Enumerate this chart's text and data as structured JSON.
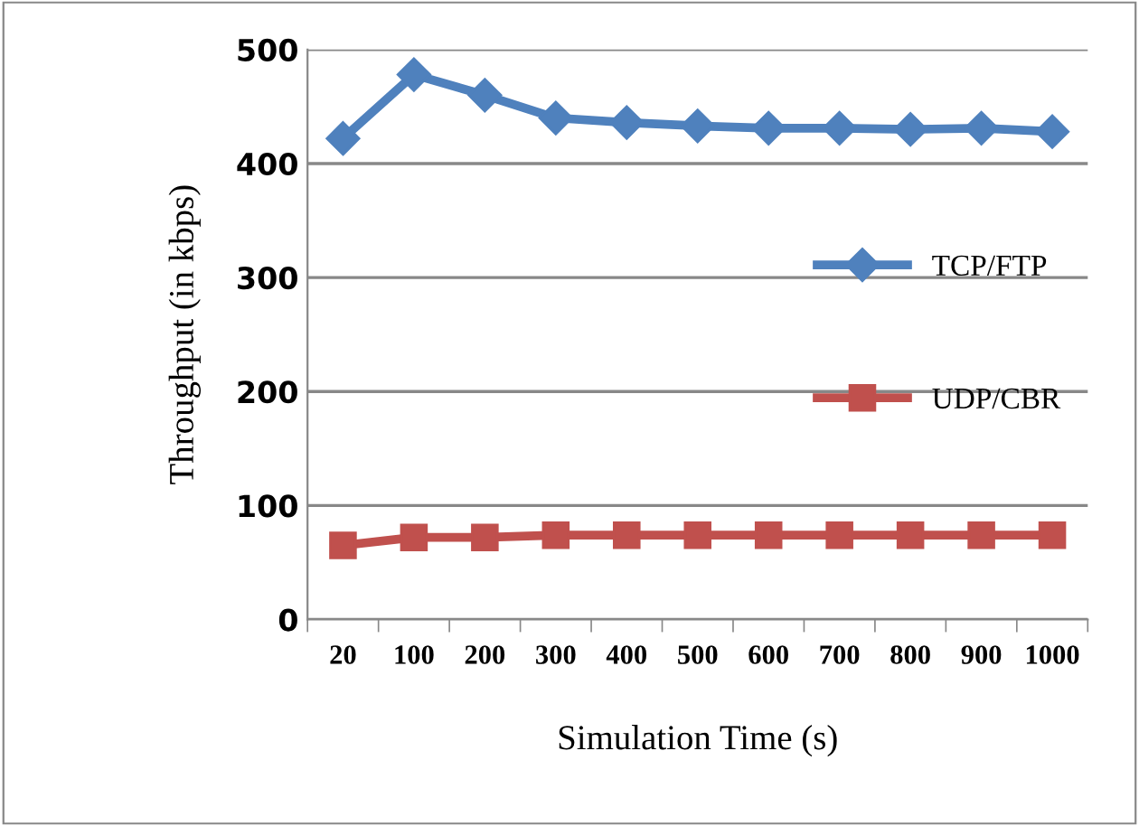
{
  "chart_data": {
    "type": "line",
    "xlabel": "Simulation Time (s)",
    "ylabel": "Throughput (in kbps)",
    "categories": [
      "20",
      "100",
      "200",
      "300",
      "400",
      "500",
      "600",
      "700",
      "800",
      "900",
      "1000"
    ],
    "series": [
      {
        "name": "TCP/FTP",
        "color": "#4f81bd",
        "marker": "diamond",
        "values": [
          422,
          478,
          460,
          440,
          436,
          433,
          431,
          431,
          430,
          431,
          428
        ]
      },
      {
        "name": "UDP/CBR",
        "color": "#c0504d",
        "marker": "square",
        "values": [
          65,
          72,
          72,
          74,
          74,
          74,
          74,
          74,
          74,
          74,
          74
        ]
      }
    ],
    "ylim": [
      0,
      500
    ],
    "yticks": [
      0,
      100,
      200,
      300,
      400,
      500
    ],
    "grid": "y",
    "legend": "right"
  }
}
